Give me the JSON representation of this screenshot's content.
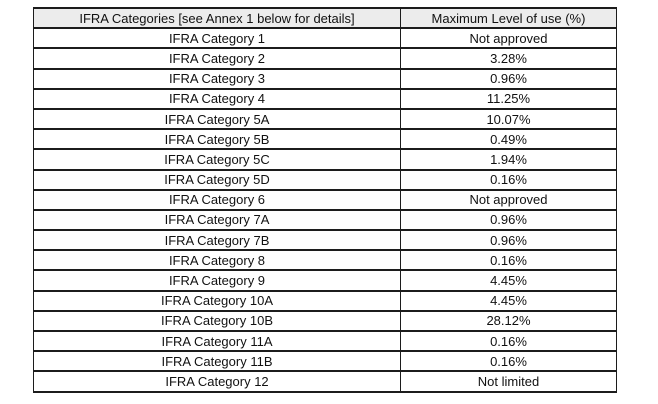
{
  "table": {
    "headers": {
      "categories": "IFRA Categories [see Annex 1 below for details]",
      "max_level": "Maximum Level of use (%)"
    },
    "rows": [
      {
        "category": "IFRA Category 1",
        "value": "Not approved"
      },
      {
        "category": "IFRA Category 2",
        "value": "3.28%"
      },
      {
        "category": "IFRA Category 3",
        "value": "0.96%"
      },
      {
        "category": "IFRA Category 4",
        "value": "11.25%"
      },
      {
        "category": "IFRA Category 5A",
        "value": "10.07%"
      },
      {
        "category": "IFRA Category 5B",
        "value": "0.49%"
      },
      {
        "category": "IFRA Category 5C",
        "value": "1.94%"
      },
      {
        "category": "IFRA Category 5D",
        "value": "0.16%"
      },
      {
        "category": "IFRA Category 6",
        "value": "Not approved"
      },
      {
        "category": "IFRA Category 7A",
        "value": "0.96%"
      },
      {
        "category": "IFRA Category 7B",
        "value": "0.96%"
      },
      {
        "category": "IFRA Category 8",
        "value": "0.16%"
      },
      {
        "category": "IFRA Category 9",
        "value": "4.45%"
      },
      {
        "category": "IFRA Category 10A",
        "value": "4.45%"
      },
      {
        "category": "IFRA Category 10B",
        "value": "28.12%"
      },
      {
        "category": "IFRA Category 11A",
        "value": "0.16%"
      },
      {
        "category": "IFRA Category 11B",
        "value": "0.16%"
      },
      {
        "category": "IFRA Category 12",
        "value": "Not limited"
      }
    ]
  },
  "colors": {
    "header_bg": "#ececec",
    "border": "#1c1c1c",
    "page_bg": "#ffffff"
  }
}
